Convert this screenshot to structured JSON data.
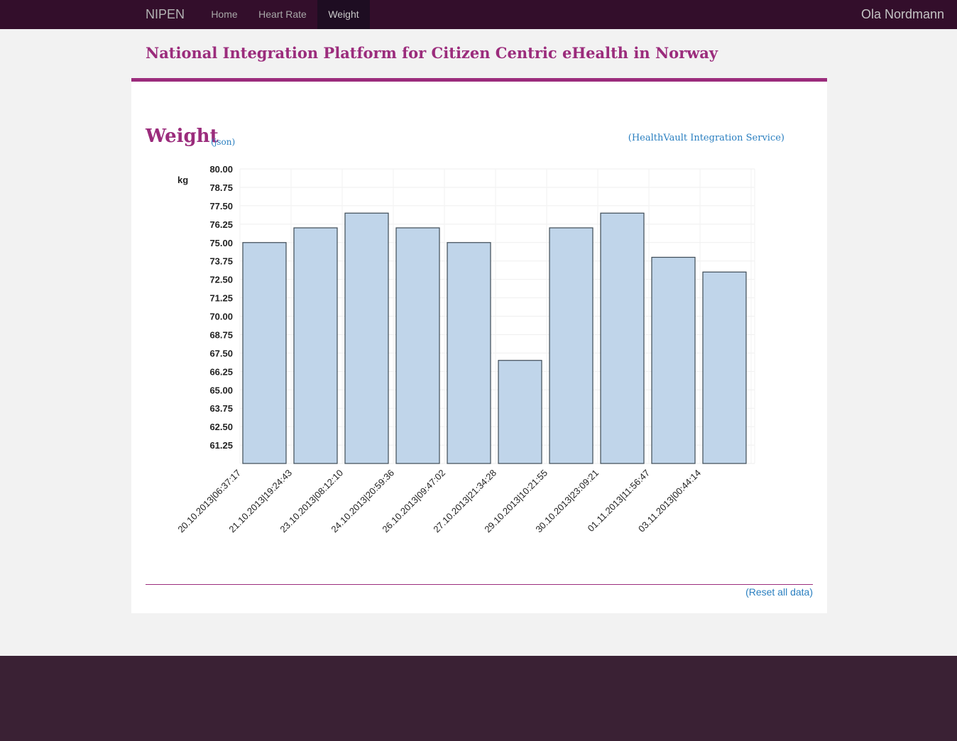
{
  "nav": {
    "brand": "NIPEN",
    "items": [
      {
        "label": "Home"
      },
      {
        "label": "Heart Rate"
      },
      {
        "label": "Weight"
      }
    ],
    "user": "Ola Nordmann"
  },
  "page": {
    "title": "National Integration Platform for Citizen Centric eHealth in Norway"
  },
  "section": {
    "heading": "Weight",
    "json_link": "(json)",
    "service_link": "(HealthVault Integration Service)",
    "reset_link": "(Reset all data)"
  },
  "colors": {
    "accent": "#9b2c7c",
    "navbar": "#330e2b",
    "bar_fill": "#c0d5ea",
    "bar_stroke": "#3d4a55",
    "link": "#2a7fc0"
  },
  "chart_data": {
    "type": "bar",
    "ylabel": "kg",
    "xlabel": "",
    "ylim": [
      60,
      80
    ],
    "yticks": [
      "80.00",
      "78.75",
      "77.50",
      "76.25",
      "75.00",
      "73.75",
      "72.50",
      "71.25",
      "70.00",
      "68.75",
      "67.50",
      "66.25",
      "65.00",
      "63.75",
      "62.50",
      "61.25"
    ],
    "grid": true,
    "categories": [
      "20.10.2013|06:37:17",
      "21.10.2013|19:24:43",
      "23.10.2013|08:12:10",
      "24.10.2013|20:59:36",
      "26.10.2013|09:47:02",
      "27.10.2013|21:34:28",
      "29.10.2013|10:21:55",
      "30.10.2013|23:09:21",
      "01.11.2013|11:56:47",
      "03.11.2013|00:44:14"
    ],
    "values": [
      75,
      76,
      77,
      76,
      75,
      67,
      76,
      77,
      74,
      73
    ]
  }
}
